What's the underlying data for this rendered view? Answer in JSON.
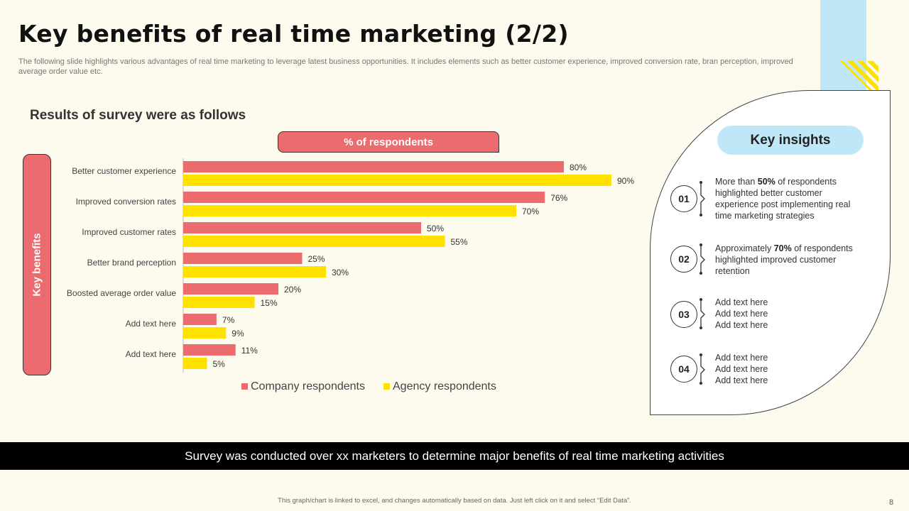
{
  "header": {
    "title": "Key benefits of real time marketing (2/2)",
    "subtitle": "The following slide highlights various advantages of real time marketing to leverage latest business opportunities. It includes elements such as better customer experience, improved conversion rate, bran perception, improved average order value etc."
  },
  "survey": {
    "heading": "Results of survey were as follows",
    "respondents_label": "% of respondents",
    "key_benefits_label": "Key benefits"
  },
  "colors": {
    "company": "#ec6b6e",
    "agency": "#ffe100",
    "accent_blue": "#bfe7f8"
  },
  "chart_data": {
    "type": "bar",
    "orientation": "horizontal",
    "title": "% of respondents",
    "categories": [
      "Better customer experience",
      "Improved conversion rates",
      "Improved customer rates",
      "Better brand perception",
      "Boosted average order value",
      "Add text here",
      "Add text here"
    ],
    "series": [
      {
        "name": "Company respondents",
        "values": [
          80,
          76,
          50,
          25,
          20,
          7,
          11
        ]
      },
      {
        "name": "Agency respondents",
        "values": [
          90,
          70,
          55,
          30,
          15,
          9,
          5
        ]
      }
    ],
    "xlim": [
      0,
      100
    ],
    "value_suffix": "%",
    "legend": "bottom",
    "ylabel": "Key benefits"
  },
  "insights": {
    "header": "Key insights",
    "items": [
      {
        "num": "01",
        "pre": "More than ",
        "bold": "50%",
        "post": " of respondents highlighted better customer experience post implementing real time marketing strategies"
      },
      {
        "num": "02",
        "pre": "Approximately ",
        "bold": "70%",
        "post": " of respondents highlighted improved customer retention"
      },
      {
        "num": "03",
        "pre": "Add text here Add text here Add text here",
        "bold": "",
        "post": ""
      },
      {
        "num": "04",
        "pre": "Add text here Add text here Add text here",
        "bold": "",
        "post": ""
      }
    ]
  },
  "footer": {
    "banner": "Survey was conducted over xx marketers to determine major benefits of  real time marketing activities",
    "note": "This graph/chart is linked to excel, and changes automatically based on data. Just left click on it and select “Edit Data”.",
    "page": "8"
  }
}
